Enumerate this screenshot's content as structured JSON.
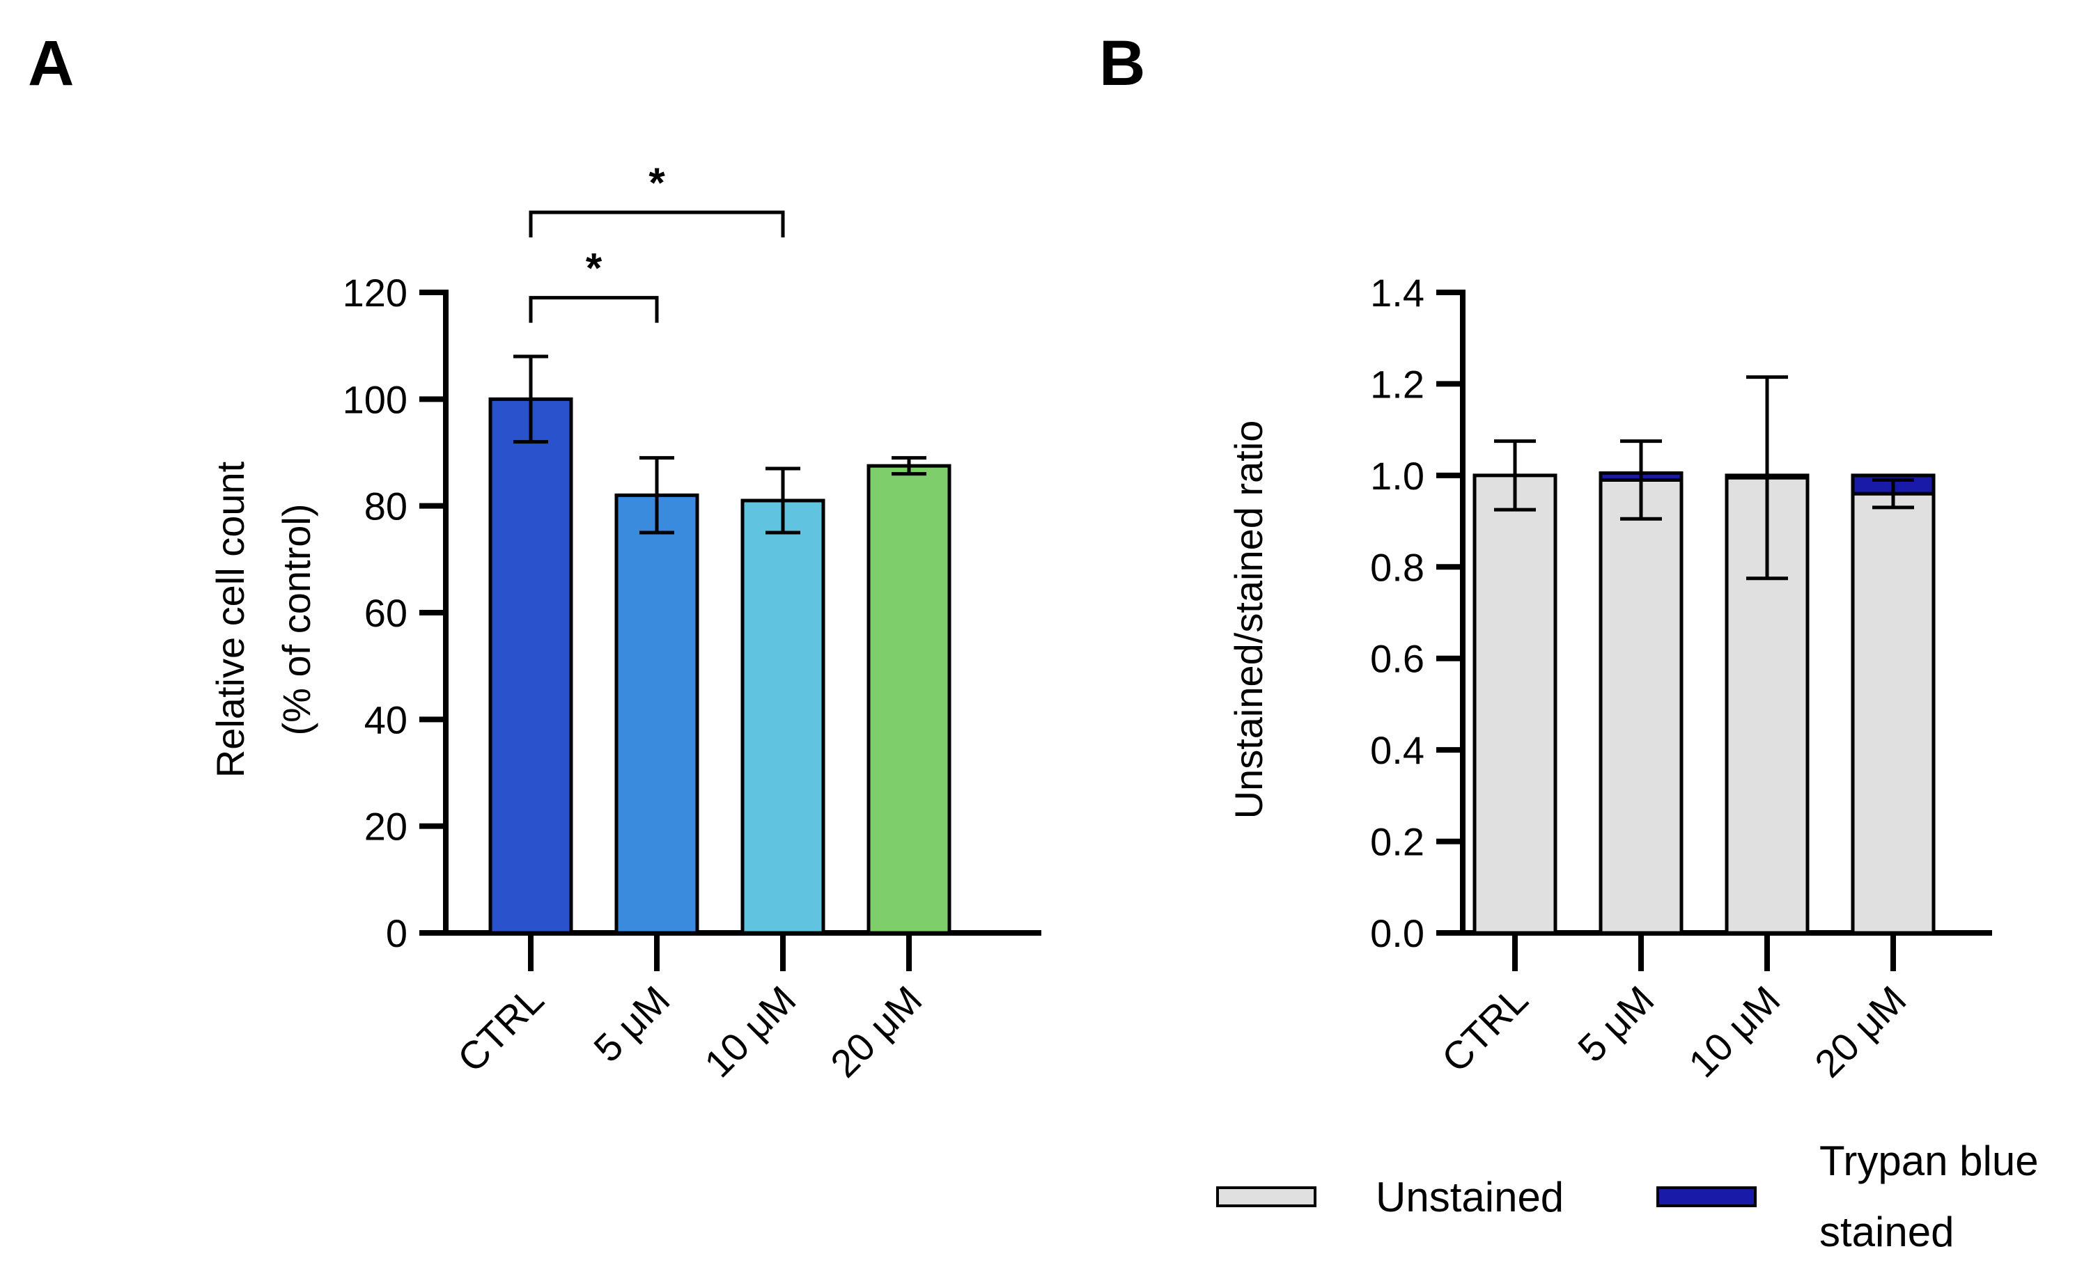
{
  "chart_data": [
    {
      "panel": "A",
      "type": "bar",
      "title": "",
      "xlabel": "",
      "ylabel_lines": [
        "Relative cell count",
        "(% of control)"
      ],
      "categories": [
        "CTRL",
        "5 μM",
        "10 μM",
        "20 μM"
      ],
      "values": [
        100,
        82,
        81,
        87.5
      ],
      "error": [
        8,
        7,
        6,
        1.5
      ],
      "colors": [
        "#2a52cc",
        "#3a8ade",
        "#60c4e0",
        "#7fce6c"
      ],
      "ylim": [
        0,
        120
      ],
      "yticks": [
        0,
        20,
        40,
        60,
        80,
        100,
        120
      ],
      "grid": false,
      "significance": [
        {
          "from": 0,
          "to": 2,
          "label": "*",
          "y": 135
        },
        {
          "from": 0,
          "to": 1,
          "label": "*",
          "y": 119
        }
      ]
    },
    {
      "panel": "B",
      "type": "bar",
      "stacked": true,
      "title": "",
      "xlabel": "",
      "ylabel": "Unstained/stained ratio",
      "categories": [
        "CTRL",
        "5 μM",
        "10 μM",
        "20 μM"
      ],
      "series": [
        {
          "name": "Unstained",
          "color": "#e0e0e0",
          "values": [
            1.0,
            0.99,
            0.995,
            0.96
          ],
          "error": [
            0.075,
            0.085,
            0.22,
            0.03
          ]
        },
        {
          "name": "Trypan blue stained",
          "color": "#1a1aa8",
          "values": [
            0.0,
            0.015,
            0.005,
            0.04
          ]
        }
      ],
      "ylim": [
        0,
        1.4
      ],
      "yticks": [
        "0.0",
        "0.2",
        "0.4",
        "0.6",
        "0.8",
        "1.0",
        "1.2",
        "1.4"
      ],
      "grid": false,
      "legend": {
        "position": "bottom",
        "entries": [
          {
            "lines": [
              "Unstained"
            ],
            "color": "#e0e0e0"
          },
          {
            "lines": [
              "Trypan blue",
              "stained"
            ],
            "color": "#1a1aa8"
          }
        ]
      }
    }
  ]
}
